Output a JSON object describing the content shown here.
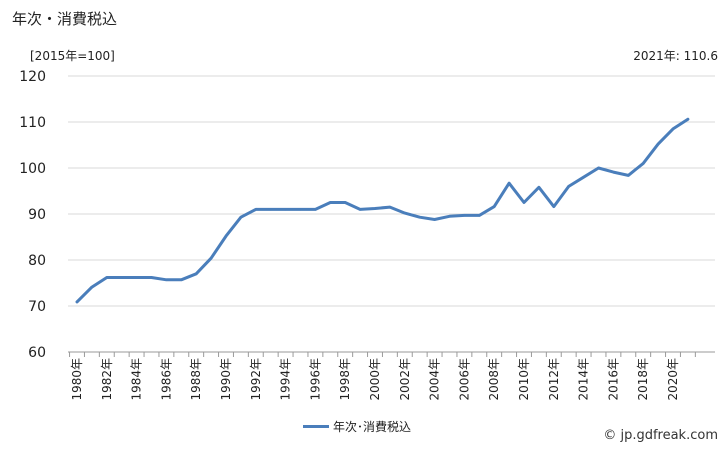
{
  "chart_data": {
    "type": "line",
    "title": "年次・消費税込",
    "unit_label": "[2015年=100]",
    "latest_label": "2021年: 110.6",
    "legend": "年次･消費税込",
    "source": "© jp.gdfreak.com",
    "ylim": [
      60,
      120
    ],
    "yticks": [
      60,
      70,
      80,
      90,
      100,
      110,
      120
    ],
    "xlim": [
      1980,
      2021
    ],
    "xtick_labels": [
      "1980年",
      "1982年",
      "1984年",
      "1986年",
      "1988年",
      "1990年",
      "1992年",
      "1994年",
      "1996年",
      "1998年",
      "2000年",
      "2002年",
      "2004年",
      "2006年",
      "2008年",
      "2010年",
      "2012年",
      "2014年",
      "2016年",
      "2018年",
      "2020年"
    ],
    "grid": true,
    "series": [
      {
        "name": "年次･消費税込",
        "color": "#4a7ebb",
        "x": [
          1980,
          1981,
          1982,
          1983,
          1984,
          1985,
          1986,
          1987,
          1988,
          1989,
          1990,
          1991,
          1992,
          1993,
          1994,
          1995,
          1996,
          1997,
          1998,
          1999,
          2000,
          2001,
          2002,
          2003,
          2004,
          2005,
          2006,
          2007,
          2008,
          2009,
          2010,
          2011,
          2012,
          2013,
          2014,
          2015,
          2016,
          2017,
          2018,
          2019,
          2020,
          2021
        ],
        "values": [
          70.9,
          74.1,
          76.2,
          76.2,
          76.2,
          76.2,
          75.7,
          75.7,
          77.0,
          80.4,
          85.2,
          89.3,
          91.0,
          91.0,
          91.0,
          91.0,
          91.0,
          92.5,
          92.5,
          91.0,
          91.2,
          91.5,
          90.2,
          89.3,
          88.8,
          89.5,
          89.7,
          89.7,
          91.6,
          96.7,
          92.5,
          95.8,
          91.6,
          96.0,
          98.0,
          100.0,
          99.1,
          98.4,
          101.0,
          105.2,
          108.5,
          110.6
        ]
      }
    ]
  }
}
